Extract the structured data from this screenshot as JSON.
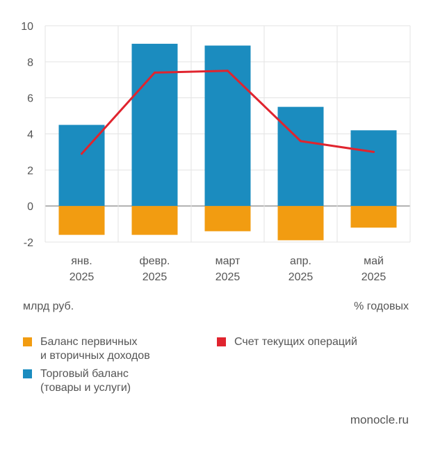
{
  "chart_data": {
    "type": "bar",
    "categories": [
      {
        "line1": "янв.",
        "line2": "2025"
      },
      {
        "line1": "февр.",
        "line2": "2025"
      },
      {
        "line1": "март",
        "line2": "2025"
      },
      {
        "line1": "апр.",
        "line2": "2025"
      },
      {
        "line1": "май",
        "line2": "2025"
      }
    ],
    "series": [
      {
        "name": "Торговый баланс (товары и услуги)",
        "kind": "bar",
        "color": "#1B8CBF",
        "values": [
          4.5,
          9.0,
          8.9,
          5.5,
          4.2
        ]
      },
      {
        "name": "Баланс первичных и вторичных доходов",
        "kind": "bar",
        "color": "#F29C11",
        "values": [
          -1.6,
          -1.6,
          -1.4,
          -1.9,
          -1.2
        ]
      },
      {
        "name": "Счет текущих операций",
        "kind": "line",
        "color": "#E0242E",
        "values": [
          2.9,
          7.4,
          7.5,
          3.6,
          3.0
        ]
      }
    ],
    "ylim": [
      -2,
      10
    ],
    "yticks": [
      -2,
      0,
      2,
      4,
      6,
      8,
      10
    ],
    "ytick_labels": [
      "-2",
      "0",
      "2",
      "4",
      "6",
      "8",
      "10"
    ],
    "grid": true,
    "ylabel": "млрд руб.",
    "xlabel": "",
    "right_label": "% годовых",
    "legend_position": "bottom"
  },
  "legend": [
    {
      "label": "Баланс первичных\nи вторичных доходов",
      "color": "#F29C11"
    },
    {
      "label": "Счет текущих операций",
      "color": "#E0242E"
    },
    {
      "label": "Торговый баланс\n(товары и услуги)",
      "color": "#1B8CBF"
    }
  ],
  "source": "monocle.ru"
}
